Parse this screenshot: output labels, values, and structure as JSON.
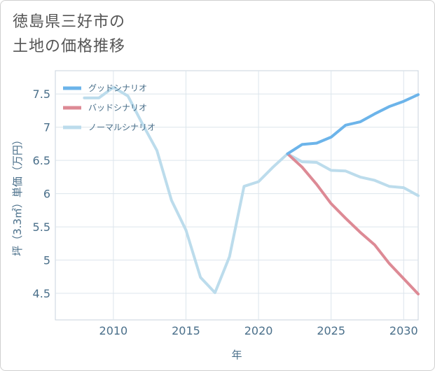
{
  "title_lines": [
    "徳島県三好市の",
    "土地の価格推移"
  ],
  "chart_data": {
    "type": "line",
    "xlabel": "年",
    "ylabel": "坪（3.3㎡）単価（万円）",
    "xlim": [
      2006,
      2031
    ],
    "ylim": [
      4.1,
      7.85
    ],
    "x_ticks": [
      2010,
      2015,
      2020,
      2025,
      2030
    ],
    "y_ticks": [
      4.5,
      5,
      5.5,
      6,
      6.5,
      7,
      7.5
    ],
    "x_tick_labels": [
      "2010",
      "2015",
      "2020",
      "2025",
      "2030"
    ],
    "y_tick_labels": [
      "4.5",
      "5",
      "5.5",
      "6",
      "6.5",
      "7",
      "7.5"
    ],
    "grid": true,
    "legend_position": "top-left",
    "series": [
      {
        "name": "グッドシナリオ",
        "color": "#6cb4ea",
        "x": [
          2022,
          2023,
          2024,
          2025,
          2026,
          2027,
          2028,
          2029,
          2030,
          2031
        ],
        "y": [
          6.6,
          6.74,
          6.76,
          6.85,
          7.03,
          7.08,
          7.2,
          7.31,
          7.39,
          7.49
        ]
      },
      {
        "name": "バッドシナリオ",
        "color": "#dd8a95",
        "x": [
          2022,
          2023,
          2024,
          2025,
          2026,
          2027,
          2028,
          2029,
          2030,
          2031
        ],
        "y": [
          6.6,
          6.4,
          6.14,
          5.85,
          5.63,
          5.42,
          5.23,
          4.95,
          4.72,
          4.49
        ]
      },
      {
        "name": "ノーマルシナリオ",
        "color": "#bcdcec",
        "x": [
          2008,
          2009,
          2010,
          2011,
          2012,
          2013,
          2014,
          2015,
          2016,
          2017,
          2018,
          2019,
          2020,
          2021,
          2022,
          2023,
          2024,
          2025,
          2026,
          2027,
          2028,
          2029,
          2030,
          2031
        ],
        "y": [
          7.44,
          7.44,
          7.6,
          7.47,
          7.05,
          6.65,
          5.9,
          5.45,
          4.74,
          4.51,
          5.05,
          6.11,
          6.18,
          6.4,
          6.6,
          6.48,
          6.47,
          6.35,
          6.34,
          6.25,
          6.2,
          6.11,
          6.09,
          5.97
        ]
      }
    ]
  }
}
